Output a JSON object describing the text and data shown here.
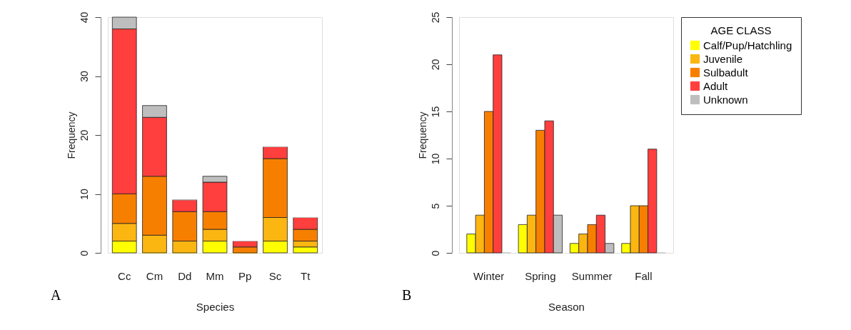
{
  "chart_data": [
    {
      "type": "bar",
      "stacked": true,
      "xlabel": "Species",
      "ylabel": "Frequency",
      "categories": [
        "Cc",
        "Cm",
        "Dd",
        "Mm",
        "Pp",
        "Sc",
        "Tt"
      ],
      "ylim": [
        0,
        40
      ],
      "yticks": [
        0,
        10,
        20,
        30,
        40
      ],
      "grid": false,
      "legend": "right",
      "annotations": [
        "A"
      ],
      "series": [
        {
          "name": "Calf/Pup/Hatchling",
          "color": "#ffff00",
          "values": [
            2,
            0,
            0,
            2,
            0,
            2,
            1
          ]
        },
        {
          "name": "Juvenile",
          "color": "#fbb612",
          "values": [
            3,
            3,
            2,
            2,
            0,
            4,
            1
          ]
        },
        {
          "name": "Sulbadult",
          "color": "#f77f00",
          "values": [
            5,
            10,
            5,
            3,
            1,
            10,
            2
          ]
        },
        {
          "name": "Adult",
          "color": "#ff3e3e",
          "values": [
            28,
            10,
            2,
            5,
            1,
            2,
            2
          ]
        },
        {
          "name": "Unknown",
          "color": "#bebebe",
          "values": [
            2,
            2,
            0,
            1,
            0,
            0,
            0
          ]
        }
      ]
    },
    {
      "type": "bar",
      "stacked": false,
      "xlabel": "Season",
      "ylabel": "Frequency",
      "categories": [
        "Winter",
        "Spring",
        "Summer",
        "Fall"
      ],
      "ylim": [
        0,
        25
      ],
      "yticks": [
        0,
        5,
        10,
        15,
        20,
        25
      ],
      "grid": false,
      "legend": "right",
      "legend_title": "AGE CLASS",
      "annotations": [
        "B"
      ],
      "series": [
        {
          "name": "Calf/Pup/Hatchling",
          "color": "#ffff00",
          "values": [
            2,
            3,
            1,
            1
          ]
        },
        {
          "name": "Juvenile",
          "color": "#fbb612",
          "values": [
            4,
            4,
            2,
            5
          ]
        },
        {
          "name": "Sulbadult",
          "color": "#f77f00",
          "values": [
            15,
            13,
            3,
            5
          ]
        },
        {
          "name": "Adult",
          "color": "#ff3e3e",
          "values": [
            21,
            14,
            4,
            11
          ]
        },
        {
          "name": "Unknown",
          "color": "#bebebe",
          "values": [
            0,
            4,
            1,
            0
          ]
        }
      ]
    }
  ]
}
